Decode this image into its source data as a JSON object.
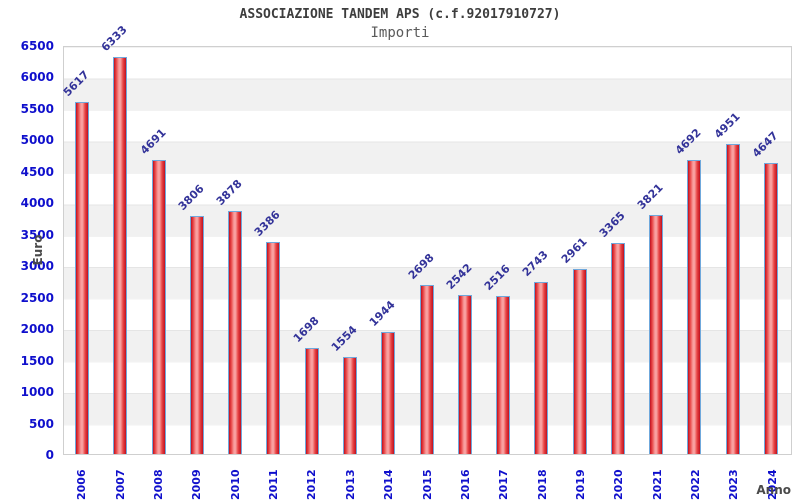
{
  "header": {
    "title": "ASSOCIAZIONE TANDEM APS (c.f.92017910727)",
    "subtitle": "Importi"
  },
  "chart_data": {
    "type": "bar",
    "title": "ASSOCIAZIONE TANDEM APS (c.f.92017910727)",
    "subtitle": "Importi",
    "xlabel": "Anno",
    "ylabel": "Euro",
    "categories": [
      "2006",
      "2007",
      "2008",
      "2009",
      "2010",
      "2011",
      "2012",
      "2013",
      "2014",
      "2015",
      "2016",
      "2017",
      "2018",
      "2019",
      "2020",
      "2021",
      "2022",
      "2023",
      "2024"
    ],
    "values": [
      5617,
      6333,
      4691,
      3806,
      3878,
      3386,
      1698,
      1554,
      1944,
      2698,
      2542,
      2516,
      2743,
      2961,
      3365,
      3821,
      4692,
      4951,
      4647
    ],
    "ylim": [
      0,
      6500
    ],
    "yticks": [
      0,
      500,
      1000,
      1500,
      2000,
      2500,
      3000,
      3500,
      4000,
      4500,
      5000,
      5500,
      6000,
      6500
    ],
    "grid": "alternating horizontal bands every 500",
    "legend": "none",
    "colors": {
      "tick_label": "#0f0fcc",
      "value_label": "#333399",
      "band": "#f1f1f1",
      "bar_border": "#6fa8dc",
      "bar_dark": "#c01020",
      "bar_mid": "#e84545",
      "bar_light": "#f9a0a0",
      "title_text": "#3d3d3d",
      "axis_title_text": "#4a4a4a"
    }
  }
}
